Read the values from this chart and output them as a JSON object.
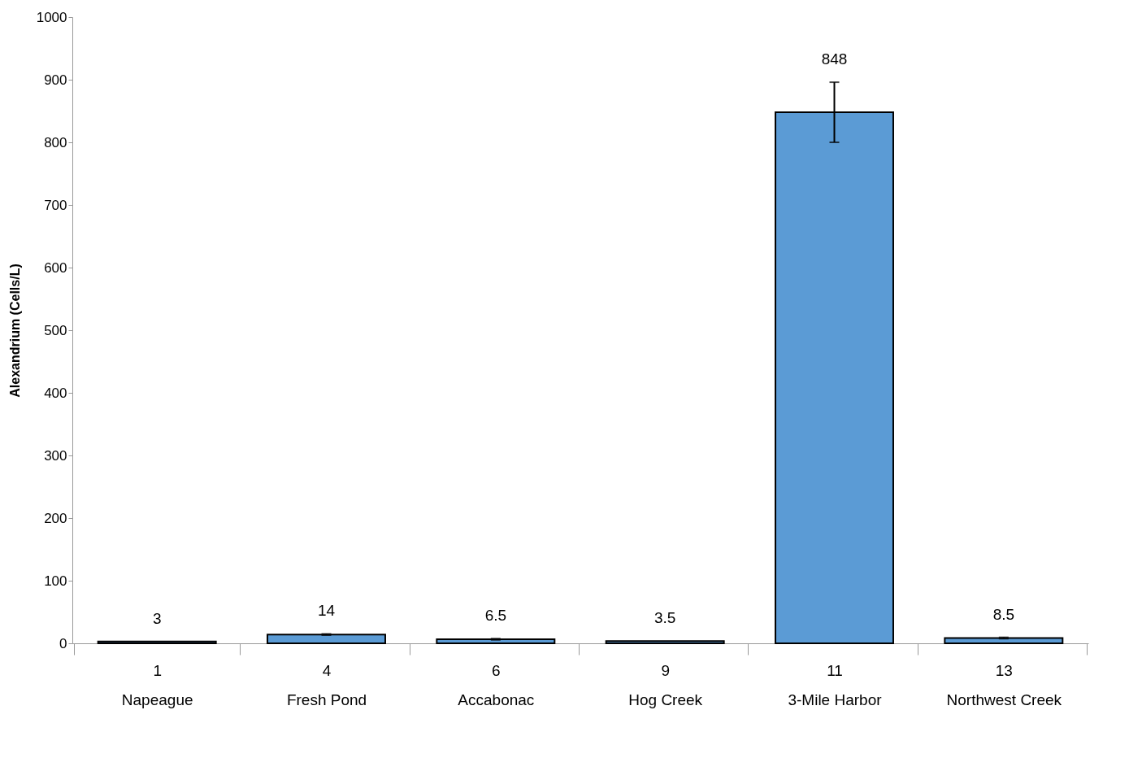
{
  "chart_data": {
    "type": "bar",
    "ylabel": "Alexandrium (Cells/L)",
    "categories": [
      "1\nNapeague",
      "4\nFresh Pond",
      "6\nAccabonac",
      "9\nHog Creek",
      "11\n3-Mile Harbor",
      "13\nNorthwest Creek"
    ],
    "values": [
      3,
      14,
      6.5,
      3.5,
      848,
      8.5
    ],
    "errors": [
      null,
      1,
      1,
      null,
      48,
      1
    ],
    "color": "#5b9bd5",
    "ylim": [
      0,
      1000
    ],
    "yticks": [
      0,
      100,
      200,
      300,
      400,
      500,
      600,
      700,
      800,
      900,
      1000
    ],
    "data_labels": true,
    "grid": false
  }
}
